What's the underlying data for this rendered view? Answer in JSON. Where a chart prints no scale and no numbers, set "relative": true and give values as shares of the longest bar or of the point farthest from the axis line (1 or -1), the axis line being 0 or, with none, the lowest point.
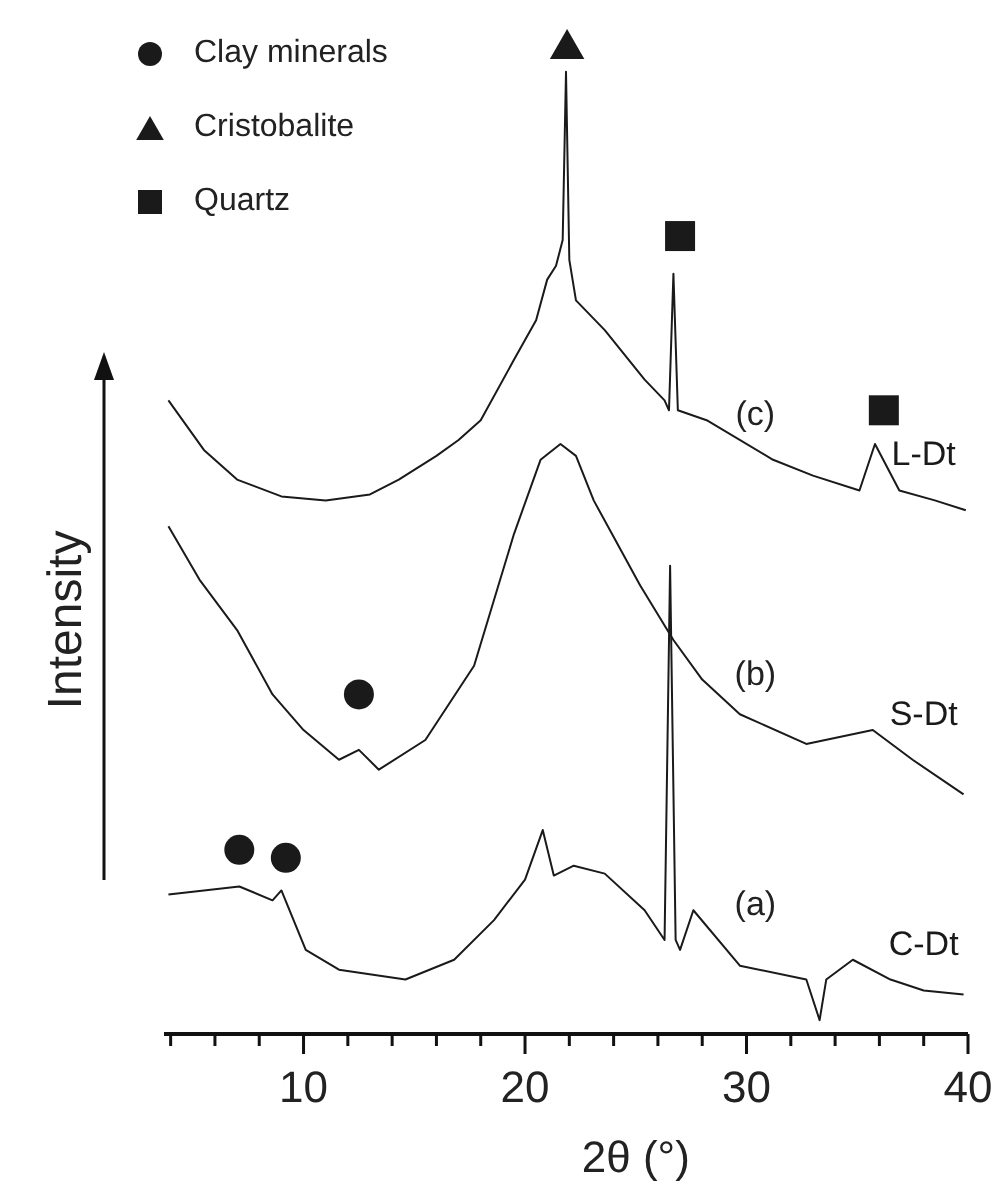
{
  "chart_data": {
    "type": "line",
    "relative": true,
    "xlabel": "2θ (°)",
    "ylabel": "Intensity",
    "xlim": [
      3.7,
      40
    ],
    "xticks": [
      {
        "value": 4,
        "label": null
      },
      {
        "value": 6,
        "label": null
      },
      {
        "value": 8,
        "label": null
      },
      10,
      {
        "value": 12,
        "label": null
      },
      {
        "value": 14,
        "label": null
      },
      {
        "value": 16,
        "label": null
      },
      {
        "value": 18,
        "label": null
      },
      20,
      {
        "value": 22,
        "label": null
      },
      {
        "value": 24,
        "label": null
      },
      {
        "value": 26,
        "label": null
      },
      {
        "value": 28,
        "label": null
      },
      30,
      {
        "value": 32,
        "label": null
      },
      {
        "value": 34,
        "label": null
      },
      {
        "value": 36,
        "label": null
      },
      {
        "value": 38,
        "label": null
      },
      40
    ],
    "grid": false,
    "legend": "top left",
    "marker": "none",
    "line_style": "solid",
    "series": [
      {
        "name": "L-Dt",
        "color": "#1a1a1a",
        "x": [
          3.9,
          5.5,
          7,
          9,
          11,
          13,
          14.3,
          16,
          17,
          18,
          19.5,
          20.5,
          21,
          21.4,
          21.7,
          21.85,
          22.0,
          22.3,
          23.6,
          25.4,
          26.3,
          26.5,
          26.7,
          26.9,
          28.2,
          31.2,
          33,
          35.1,
          35.8,
          36.9,
          38.5,
          39.9
        ],
        "values": [
          0.64,
          0.59,
          0.56,
          0.543,
          0.539,
          0.545,
          0.56,
          0.584,
          0.6,
          0.62,
          0.681,
          0.721,
          0.762,
          0.776,
          0.802,
          0.972,
          0.782,
          0.741,
          0.711,
          0.661,
          0.64,
          0.63,
          0.768,
          0.63,
          0.62,
          0.58,
          0.564,
          0.549,
          0.596,
          0.549,
          0.539,
          0.529
        ]
      },
      {
        "name": "S-Dt",
        "color": "#1a1a1a",
        "x": [
          3.9,
          5.3,
          7,
          8.6,
          10,
          11.6,
          12.5,
          13.4,
          15.5,
          17.7,
          19.5,
          20.7,
          21.6,
          22.3,
          23.1,
          25.2,
          26.7,
          28,
          29.7,
          32.7,
          35.7,
          37.5,
          39.8
        ],
        "values": [
          0.513,
          0.459,
          0.408,
          0.343,
          0.307,
          0.277,
          0.287,
          0.267,
          0.297,
          0.372,
          0.505,
          0.58,
          0.596,
          0.584,
          0.539,
          0.453,
          0.398,
          0.358,
          0.323,
          0.293,
          0.307,
          0.277,
          0.242
        ]
      },
      {
        "name": "C-Dt",
        "color": "#1a1a1a",
        "x": [
          3.9,
          5.5,
          7.1,
          8.6,
          9,
          10.1,
          11.6,
          14.6,
          16.8,
          18.6,
          20,
          20.8,
          21.3,
          22.2,
          23.6,
          25.4,
          26.3,
          26.55,
          26.8,
          27.0,
          27.6,
          29.7,
          32.7,
          33.3,
          33.6,
          34.8,
          36.5,
          38,
          39.8
        ],
        "values": [
          0.141,
          0.145,
          0.149,
          0.135,
          0.145,
          0.085,
          0.065,
          0.055,
          0.075,
          0.115,
          0.156,
          0.206,
          0.16,
          0.17,
          0.162,
          0.125,
          0.095,
          0.473,
          0.095,
          0.085,
          0.125,
          0.069,
          0.055,
          0.014,
          0.055,
          0.075,
          0.055,
          0.044,
          0.04
        ]
      },
      {
        "name": "Clay minerals",
        "type": "scatter",
        "marker": "circle",
        "color": "#1a1a1a",
        "x": [
          7.1,
          9.2,
          12.5
        ],
        "values": [
          0.186,
          0.178,
          0.343
        ]
      },
      {
        "name": "Cristobalite",
        "type": "scatter",
        "marker": "triangle",
        "color": "#1a1a1a",
        "x": [
          21.9
        ],
        "values": [
          1.0
        ]
      },
      {
        "name": "Quartz",
        "type": "scatter",
        "marker": "square",
        "color": "#1a1a1a",
        "x": [
          27.0,
          36.2
        ],
        "values": [
          0.806,
          0.63
        ]
      }
    ],
    "annotations": [
      "(c)",
      "(b)",
      "(a)"
    ]
  }
}
